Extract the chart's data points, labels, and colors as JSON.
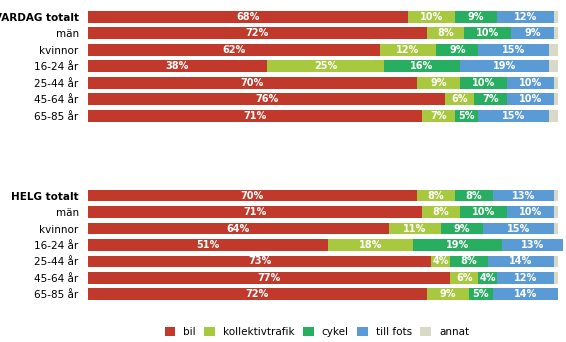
{
  "vardag": {
    "labels": [
      "VARDAG totalt",
      "män",
      "kvinnor",
      "16-24 år",
      "25-44 år",
      "45-64 år",
      "65-85 år"
    ],
    "bil": [
      68,
      72,
      62,
      38,
      70,
      76,
      71
    ],
    "kollektivtrafik": [
      10,
      8,
      12,
      25,
      9,
      6,
      7
    ],
    "cykel": [
      9,
      10,
      9,
      16,
      10,
      7,
      5
    ],
    "till_fots": [
      12,
      9,
      15,
      19,
      10,
      10,
      15
    ],
    "annat": [
      1,
      1,
      2,
      2,
      1,
      1,
      2
    ]
  },
  "helg": {
    "labels": [
      "HELG totalt",
      "män",
      "kvinnor",
      "16-24 år",
      "25-44 år",
      "45-64 år",
      "65-85 år"
    ],
    "bil": [
      70,
      71,
      64,
      51,
      73,
      77,
      72
    ],
    "kollektivtrafik": [
      8,
      8,
      11,
      18,
      4,
      6,
      9
    ],
    "cykel": [
      8,
      10,
      9,
      19,
      8,
      4,
      5
    ],
    "till_fots": [
      13,
      10,
      15,
      13,
      14,
      12,
      14
    ],
    "annat": [
      1,
      1,
      1,
      0,
      1,
      1,
      0
    ]
  },
  "colors": {
    "bil": "#c0392b",
    "kollektivtrafik": "#a8c840",
    "cykel": "#27ae60",
    "till_fots": "#5b9bd5",
    "annat": "#d9d9c8"
  },
  "legend_labels": [
    "bil",
    "kollektivtrafik",
    "cykel",
    "till fots",
    "annat"
  ],
  "label_fontsize": 7.5,
  "bar_fontsize": 7.0,
  "bar_height": 0.72
}
